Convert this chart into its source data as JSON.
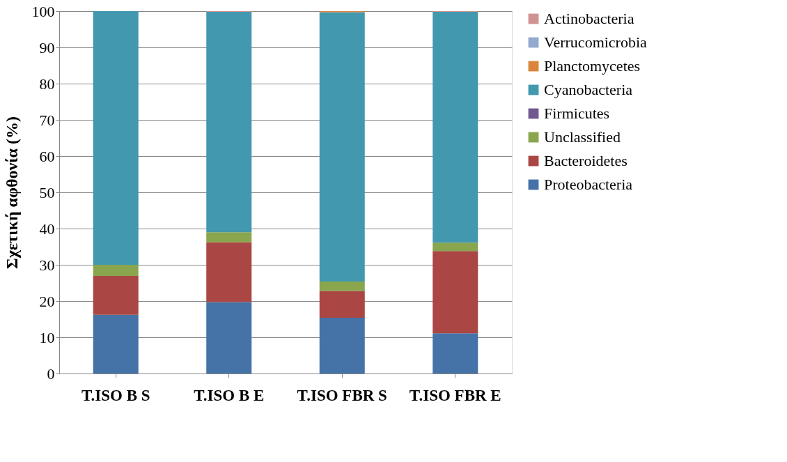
{
  "chart_data": {
    "type": "bar",
    "stacked": true,
    "ylabel": "Σχετική αφθονία (%)",
    "categories": [
      "T.ISO B S",
      "T.ISO B E",
      "T.ISO FBR S",
      "T.ISO FBR E"
    ],
    "series": [
      {
        "name": "Proteobacteria",
        "color": "#4572a7",
        "values": [
          16.2,
          19.7,
          15.4,
          11.1
        ]
      },
      {
        "name": "Bacteroidetes",
        "color": "#aa4643",
        "values": [
          10.7,
          16.5,
          7.4,
          22.7
        ]
      },
      {
        "name": "Unclassified",
        "color": "#89a54e",
        "values": [
          3.1,
          2.8,
          2.6,
          2.3
        ]
      },
      {
        "name": "Firmicutes",
        "color": "#71588f",
        "values": [
          0,
          0,
          0,
          0
        ]
      },
      {
        "name": "Cyanobacteria",
        "color": "#4198af",
        "values": [
          70.0,
          60.8,
          74.3,
          63.7
        ]
      },
      {
        "name": "Planctomycetes",
        "color": "#db843d",
        "values": [
          0,
          0,
          0.3,
          0
        ]
      },
      {
        "name": "Verrucomicrobia",
        "color": "#93a9cf",
        "values": [
          0,
          0,
          0,
          0
        ]
      },
      {
        "name": "Actinobacteria",
        "color": "#d19392",
        "values": [
          0,
          0.2,
          0,
          0.2
        ]
      }
    ],
    "ylim": [
      0,
      100
    ],
    "yticks": [
      0,
      10,
      20,
      30,
      40,
      50,
      60,
      70,
      80,
      90,
      100
    ],
    "grid": "y",
    "legend": "right"
  }
}
